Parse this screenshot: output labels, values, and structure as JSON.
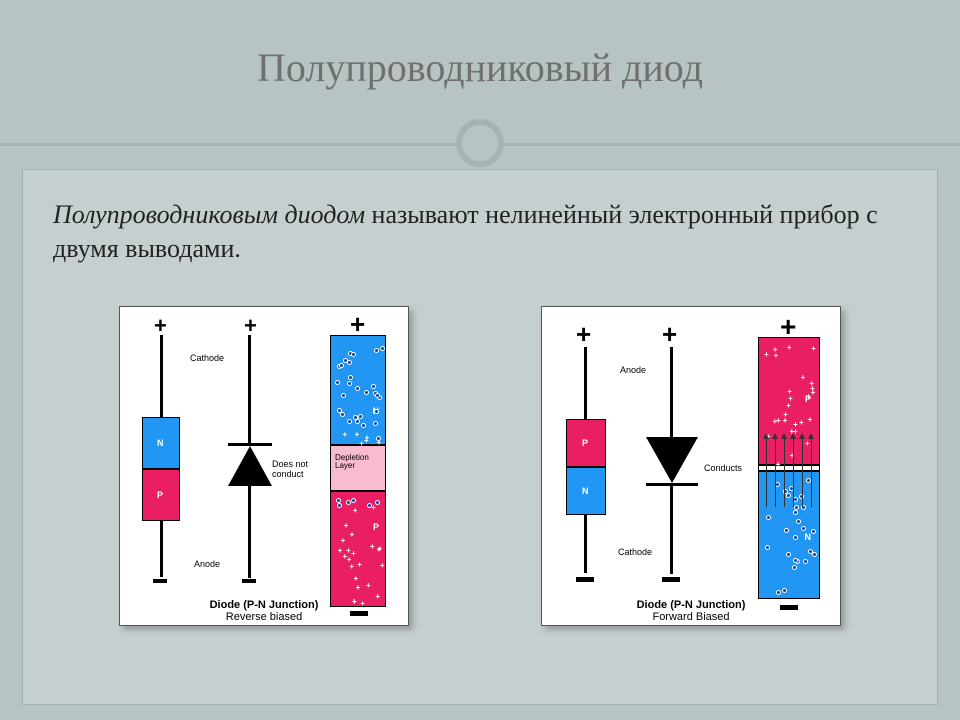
{
  "title": "Полупроводниковый диод",
  "definition_term": "Полупроводниковым диодом",
  "definition_rest": " называют нелинейный электронный прибор с двумя выводами.",
  "colors": {
    "slide_bg": "#b8c4c4",
    "content_bg": "#c5cfcf",
    "ring": "#a7b2b2",
    "title_text": "#707070",
    "p_region": "#e91e63",
    "n_region": "#2196f3",
    "depletion": "#f8bbd0",
    "electron": "#0d47a1",
    "panel_bg": "#ffffff"
  },
  "left": {
    "top_label": "Cathode",
    "bottom_label": "Anode",
    "block_top_letter": "N",
    "block_bot_letter": "P",
    "mid_label": "Does not conduct",
    "depletion_label": "Depletion Layer",
    "jcol_top_letter": "N",
    "jcol_bot_letter": "P",
    "caption_main": "Diode (P-N Junction)",
    "caption_sub": "Reverse biased",
    "triangle_dir": "up"
  },
  "right": {
    "top_label": "Anode",
    "bottom_label": "Cathode",
    "block_top_letter": "P",
    "block_bot_letter": "N",
    "mid_label": "Conducts",
    "jcol_top_letter": "P",
    "jcol_bot_letter": "N",
    "caption_main": "Diode (P-N Junction)",
    "caption_sub": "Forward Biased",
    "triangle_dir": "down"
  },
  "typography": {
    "title_fontsize": 40,
    "body_fontsize": 26,
    "caption_fontsize": 11,
    "label_fontsize": 9
  }
}
